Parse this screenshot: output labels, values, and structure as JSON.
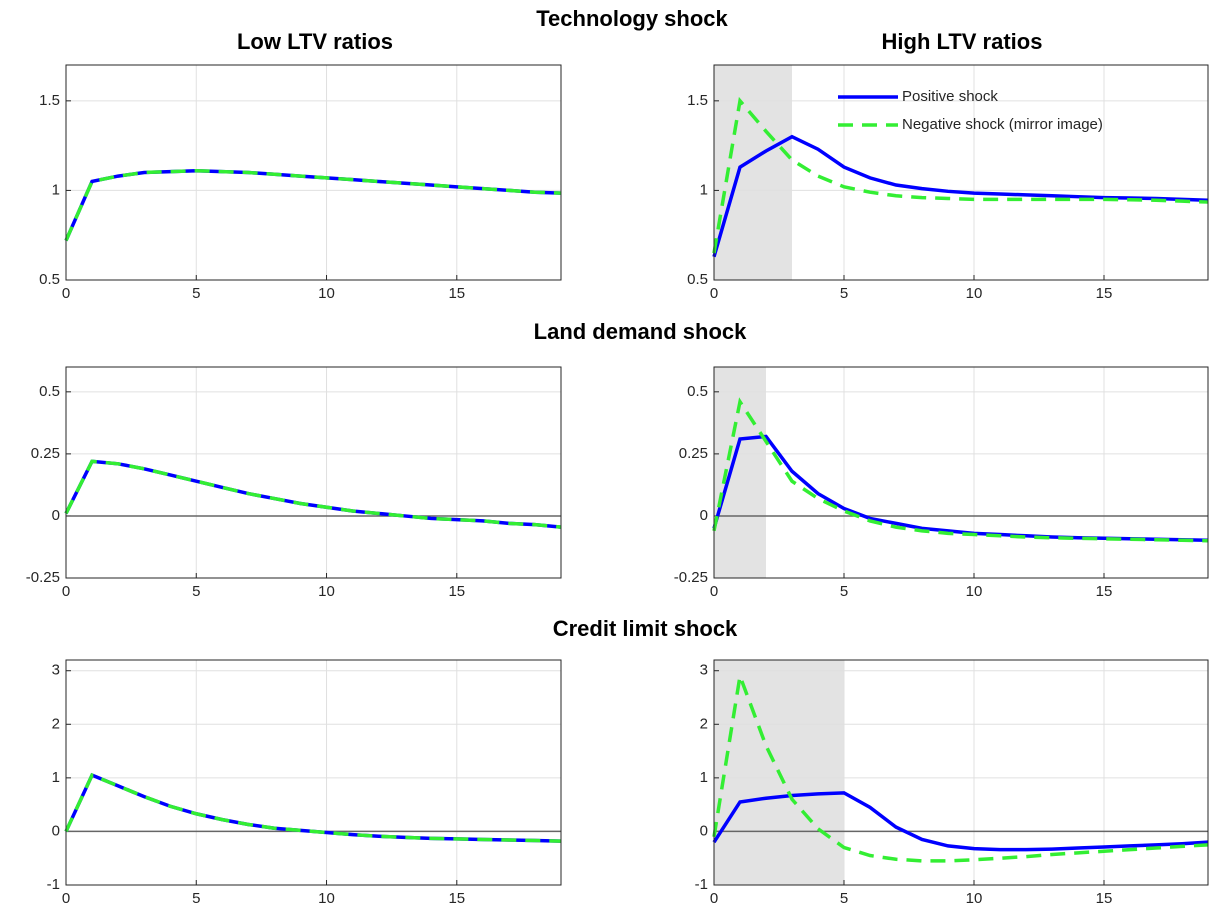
{
  "row_titles": [
    "Technology shock",
    "Land demand shock",
    "Credit limit shock"
  ],
  "column_titles": [
    "Low LTV ratios",
    "High LTV ratios"
  ],
  "chart_data": [
    {
      "type": "line",
      "x": [
        0,
        1,
        2,
        3,
        4,
        5,
        6,
        7,
        8,
        9,
        10,
        11,
        12,
        13,
        14,
        15,
        16,
        17,
        18,
        19
      ],
      "xlim": [
        0,
        19
      ],
      "xticks": [
        0,
        5,
        10,
        15
      ],
      "ylim": [
        0.5,
        1.7
      ],
      "yticks": [
        0.5,
        1,
        1.5
      ],
      "grid": true,
      "zero_line": false,
      "series": [
        {
          "color": "#0000ff",
          "linestyle": "solid",
          "values": [
            0.72,
            1.05,
            1.08,
            1.1,
            1.105,
            1.11,
            1.105,
            1.1,
            1.09,
            1.08,
            1.07,
            1.06,
            1.05,
            1.04,
            1.03,
            1.02,
            1.01,
            1.0,
            0.99,
            0.985
          ]
        },
        {
          "color": "#33ee33",
          "linestyle": "dashed",
          "values": [
            0.72,
            1.05,
            1.08,
            1.1,
            1.105,
            1.11,
            1.105,
            1.1,
            1.09,
            1.08,
            1.07,
            1.06,
            1.05,
            1.04,
            1.03,
            1.02,
            1.01,
            1.0,
            0.99,
            0.985
          ]
        }
      ]
    },
    {
      "type": "line",
      "x": [
        0,
        1,
        2,
        3,
        4,
        5,
        6,
        7,
        8,
        9,
        10,
        11,
        12,
        13,
        14,
        15,
        16,
        17,
        18,
        19
      ],
      "xlim": [
        0,
        19
      ],
      "xticks": [
        0,
        5,
        10,
        15
      ],
      "ylim": [
        0.5,
        1.7
      ],
      "yticks": [
        0.5,
        1,
        1.5
      ],
      "grid": true,
      "zero_line": false,
      "shade": [
        0,
        3
      ],
      "legend": "upper right",
      "series": [
        {
          "name": "Positive shock",
          "color": "#0000ff",
          "linestyle": "solid",
          "values": [
            0.63,
            1.13,
            1.22,
            1.3,
            1.23,
            1.13,
            1.07,
            1.03,
            1.01,
            0.995,
            0.985,
            0.98,
            0.975,
            0.97,
            0.965,
            0.96,
            0.958,
            0.955,
            0.95,
            0.945
          ]
        },
        {
          "name": "Negative shock (mirror image)",
          "color": "#33ee33",
          "linestyle": "dashed",
          "values": [
            0.65,
            1.5,
            1.33,
            1.17,
            1.08,
            1.02,
            0.99,
            0.97,
            0.96,
            0.955,
            0.95,
            0.95,
            0.95,
            0.95,
            0.95,
            0.95,
            0.948,
            0.945,
            0.94,
            0.935
          ]
        }
      ]
    },
    {
      "type": "line",
      "x": [
        0,
        1,
        2,
        3,
        4,
        5,
        6,
        7,
        8,
        9,
        10,
        11,
        12,
        13,
        14,
        15,
        16,
        17,
        18,
        19
      ],
      "xlim": [
        0,
        19
      ],
      "xticks": [
        0,
        5,
        10,
        15
      ],
      "ylim": [
        -0.25,
        0.6
      ],
      "yticks": [
        -0.25,
        0,
        0.25,
        0.5
      ],
      "grid": true,
      "zero_line": true,
      "series": [
        {
          "color": "#0000ff",
          "linestyle": "solid",
          "values": [
            0.01,
            0.22,
            0.21,
            0.19,
            0.165,
            0.14,
            0.115,
            0.09,
            0.07,
            0.05,
            0.035,
            0.02,
            0.01,
            0.0,
            -0.01,
            -0.015,
            -0.02,
            -0.03,
            -0.035,
            -0.045
          ]
        },
        {
          "color": "#33ee33",
          "linestyle": "dashed",
          "values": [
            0.01,
            0.22,
            0.21,
            0.19,
            0.165,
            0.14,
            0.115,
            0.09,
            0.07,
            0.05,
            0.035,
            0.02,
            0.01,
            0.0,
            -0.01,
            -0.015,
            -0.02,
            -0.03,
            -0.035,
            -0.045
          ]
        }
      ]
    },
    {
      "type": "line",
      "x": [
        0,
        1,
        2,
        3,
        4,
        5,
        6,
        7,
        8,
        9,
        10,
        11,
        12,
        13,
        14,
        15,
        16,
        17,
        18,
        19
      ],
      "xlim": [
        0,
        19
      ],
      "xticks": [
        0,
        5,
        10,
        15
      ],
      "ylim": [
        -0.25,
        0.6
      ],
      "yticks": [
        -0.25,
        0,
        0.25,
        0.5
      ],
      "grid": true,
      "zero_line": true,
      "shade": [
        0,
        2
      ],
      "series": [
        {
          "color": "#0000ff",
          "linestyle": "solid",
          "values": [
            -0.05,
            0.31,
            0.32,
            0.18,
            0.09,
            0.03,
            -0.01,
            -0.03,
            -0.05,
            -0.06,
            -0.07,
            -0.075,
            -0.08,
            -0.085,
            -0.088,
            -0.09,
            -0.092,
            -0.094,
            -0.096,
            -0.098
          ]
        },
        {
          "color": "#33ee33",
          "linestyle": "dashed",
          "values": [
            -0.06,
            0.46,
            0.3,
            0.14,
            0.07,
            0.02,
            -0.02,
            -0.045,
            -0.06,
            -0.07,
            -0.075,
            -0.08,
            -0.085,
            -0.088,
            -0.09,
            -0.092,
            -0.094,
            -0.096,
            -0.098,
            -0.1
          ]
        }
      ]
    },
    {
      "type": "line",
      "x": [
        0,
        1,
        2,
        3,
        4,
        5,
        6,
        7,
        8,
        9,
        10,
        11,
        12,
        13,
        14,
        15,
        16,
        17,
        18,
        19
      ],
      "xlim": [
        0,
        19
      ],
      "xticks": [
        0,
        5,
        10,
        15
      ],
      "ylim": [
        -1,
        3.2
      ],
      "yticks": [
        -1,
        0,
        1,
        2,
        3
      ],
      "grid": true,
      "zero_line": true,
      "series": [
        {
          "color": "#0000ff",
          "linestyle": "solid",
          "values": [
            0,
            1.05,
            0.85,
            0.65,
            0.47,
            0.33,
            0.22,
            0.13,
            0.06,
            0.02,
            -0.02,
            -0.06,
            -0.09,
            -0.11,
            -0.13,
            -0.14,
            -0.15,
            -0.16,
            -0.17,
            -0.18
          ]
        },
        {
          "color": "#33ee33",
          "linestyle": "dashed",
          "values": [
            0,
            1.05,
            0.85,
            0.65,
            0.47,
            0.33,
            0.22,
            0.13,
            0.06,
            0.02,
            -0.02,
            -0.06,
            -0.09,
            -0.11,
            -0.13,
            -0.14,
            -0.15,
            -0.16,
            -0.17,
            -0.18
          ]
        }
      ]
    },
    {
      "type": "line",
      "x": [
        0,
        1,
        2,
        3,
        4,
        5,
        6,
        7,
        8,
        9,
        10,
        11,
        12,
        13,
        14,
        15,
        16,
        17,
        18,
        19
      ],
      "xlim": [
        0,
        19
      ],
      "xticks": [
        0,
        5,
        10,
        15
      ],
      "ylim": [
        -1,
        3.2
      ],
      "yticks": [
        -1,
        0,
        1,
        2,
        3
      ],
      "grid": true,
      "zero_line": true,
      "shade": [
        0,
        5
      ],
      "series": [
        {
          "color": "#0000ff",
          "linestyle": "solid",
          "values": [
            -0.2,
            0.55,
            0.62,
            0.67,
            0.7,
            0.72,
            0.45,
            0.08,
            -0.15,
            -0.27,
            -0.32,
            -0.34,
            -0.34,
            -0.33,
            -0.31,
            -0.29,
            -0.27,
            -0.25,
            -0.23,
            -0.2
          ]
        },
        {
          "color": "#33ee33",
          "linestyle": "dashed",
          "values": [
            -0.1,
            2.9,
            1.6,
            0.6,
            0.05,
            -0.3,
            -0.45,
            -0.52,
            -0.55,
            -0.55,
            -0.53,
            -0.5,
            -0.47,
            -0.43,
            -0.4,
            -0.37,
            -0.34,
            -0.31,
            -0.28,
            -0.25
          ]
        }
      ]
    }
  ]
}
